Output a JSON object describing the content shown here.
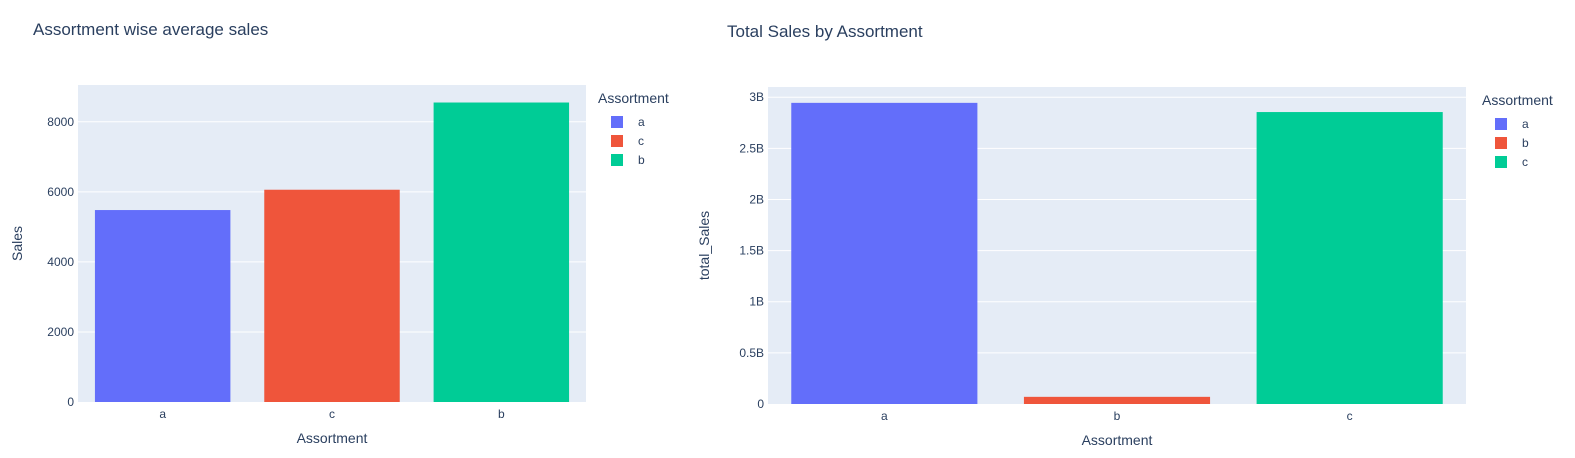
{
  "colors": {
    "plot_bg": "#E5ECF6",
    "grid": "#ffffff",
    "text": "#2a3f5f",
    "a": "#636EFA",
    "b": "#00CC96",
    "c": "#EF553B"
  },
  "chart_data": [
    {
      "type": "bar",
      "title": "Assortment wise average sales",
      "xlabel": "Assortment",
      "ylabel": "Sales",
      "categories": [
        "a",
        "c",
        "b"
      ],
      "values": [
        5480,
        6060,
        8550
      ],
      "bar_colors": [
        "#636EFA",
        "#EF553B",
        "#00CC96"
      ],
      "ylim": [
        0,
        9050
      ],
      "yticks": [
        0,
        2000,
        4000,
        6000,
        8000
      ],
      "ytick_labels": [
        "0",
        "2000",
        "4000",
        "6000",
        "8000"
      ],
      "grid": true,
      "legend": {
        "title": "Assortment",
        "position": "right",
        "entries": [
          {
            "label": "a",
            "color": "#636EFA"
          },
          {
            "label": "c",
            "color": "#EF553B"
          },
          {
            "label": "b",
            "color": "#00CC96"
          }
        ]
      }
    },
    {
      "type": "bar",
      "title": "Total Sales by Assortment",
      "xlabel": "Assortment",
      "ylabel": "total_Sales",
      "categories": [
        "a",
        "b",
        "c"
      ],
      "values": [
        2945000000,
        70000000,
        2855000000
      ],
      "bar_colors": [
        "#636EFA",
        "#EF553B",
        "#00CC96"
      ],
      "ylim": [
        0,
        3100000000
      ],
      "yticks": [
        0,
        500000000,
        1000000000,
        1500000000,
        2000000000,
        2500000000,
        3000000000
      ],
      "ytick_labels": [
        "0",
        "0.5B",
        "1B",
        "1.5B",
        "2B",
        "2.5B",
        "3B"
      ],
      "grid": true,
      "legend": {
        "title": "Assortment",
        "position": "right",
        "entries": [
          {
            "label": "a",
            "color": "#636EFA"
          },
          {
            "label": "b",
            "color": "#EF553B"
          },
          {
            "label": "c",
            "color": "#00CC96"
          }
        ]
      }
    }
  ]
}
